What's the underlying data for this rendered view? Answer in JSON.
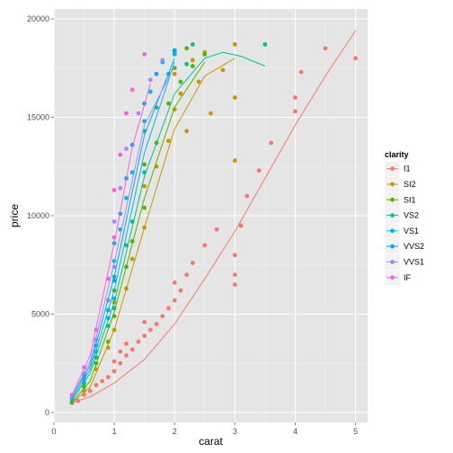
{
  "chart_data": {
    "type": "scatter",
    "xlabel": "carat",
    "ylabel": "price",
    "xlim": [
      0,
      5.2
    ],
    "ylim": [
      -500,
      20500
    ],
    "x_ticks": [
      0,
      1,
      2,
      3,
      4,
      5
    ],
    "y_ticks": [
      0,
      5000,
      10000,
      15000,
      20000
    ],
    "x_tick_labels": [
      "0",
      "1",
      "2",
      "3",
      "4",
      "5"
    ],
    "y_tick_labels": [
      "0",
      "5000",
      "10000",
      "15000",
      "20000"
    ],
    "grid": true,
    "legend": {
      "title": "clarity",
      "position": "right"
    },
    "series": [
      {
        "name": "I1",
        "color": "#F8766D",
        "points": [
          [
            0.4,
            600
          ],
          [
            0.5,
            900
          ],
          [
            0.6,
            1100
          ],
          [
            0.7,
            1400
          ],
          [
            0.8,
            1600
          ],
          [
            0.9,
            1800
          ],
          [
            1.0,
            2100
          ],
          [
            1.0,
            2600
          ],
          [
            1.1,
            2500
          ],
          [
            1.1,
            3100
          ],
          [
            1.2,
            2900
          ],
          [
            1.2,
            3500
          ],
          [
            1.3,
            3200
          ],
          [
            1.4,
            3600
          ],
          [
            1.5,
            3900
          ],
          [
            1.5,
            4600
          ],
          [
            1.6,
            4200
          ],
          [
            1.7,
            4500
          ],
          [
            1.8,
            4900
          ],
          [
            1.9,
            5300
          ],
          [
            2.0,
            5700
          ],
          [
            2.0,
            6600
          ],
          [
            2.1,
            6200
          ],
          [
            2.2,
            7000
          ],
          [
            2.3,
            7600
          ],
          [
            2.5,
            8500
          ],
          [
            2.7,
            9300
          ],
          [
            3.0,
            8000
          ],
          [
            3.0,
            7000
          ],
          [
            3.0,
            6500
          ],
          [
            3.1,
            9500
          ],
          [
            3.2,
            11000
          ],
          [
            3.4,
            12300
          ],
          [
            3.6,
            13700
          ],
          [
            4.0,
            15300
          ],
          [
            4.0,
            16000
          ],
          [
            4.1,
            17300
          ],
          [
            4.5,
            18500
          ],
          [
            5.0,
            18000
          ]
        ],
        "fit": [
          [
            0.3,
            500
          ],
          [
            0.6,
            800
          ],
          [
            1.0,
            1500
          ],
          [
            1.5,
            2700
          ],
          [
            2.0,
            4500
          ],
          [
            2.5,
            6800
          ],
          [
            3.0,
            9200
          ],
          [
            3.5,
            11900
          ],
          [
            4.0,
            14600
          ],
          [
            4.5,
            17100
          ],
          [
            5.0,
            19400
          ]
        ]
      },
      {
        "name": "SI2",
        "color": "#C49A00",
        "points": [
          [
            0.3,
            500
          ],
          [
            0.5,
            1100
          ],
          [
            0.7,
            2200
          ],
          [
            0.9,
            3300
          ],
          [
            1.0,
            4200
          ],
          [
            1.0,
            5600
          ],
          [
            1.2,
            6300
          ],
          [
            1.3,
            7800
          ],
          [
            1.5,
            9400
          ],
          [
            1.5,
            11500
          ],
          [
            1.7,
            12500
          ],
          [
            1.9,
            13800
          ],
          [
            2.0,
            15400
          ],
          [
            2.0,
            17200
          ],
          [
            2.1,
            16200
          ],
          [
            2.2,
            14300
          ],
          [
            2.3,
            17900
          ],
          [
            2.4,
            16800
          ],
          [
            2.5,
            18300
          ],
          [
            2.6,
            15200
          ],
          [
            2.8,
            17400
          ],
          [
            3.0,
            18700
          ],
          [
            3.0,
            12800
          ],
          [
            3.0,
            16000
          ]
        ],
        "fit": [
          [
            0.3,
            500
          ],
          [
            0.6,
            1300
          ],
          [
            1.0,
            4200
          ],
          [
            1.5,
            9400
          ],
          [
            2.0,
            14400
          ],
          [
            2.5,
            17100
          ],
          [
            3.0,
            18000
          ]
        ]
      },
      {
        "name": "SI1",
        "color": "#53B400",
        "points": [
          [
            0.3,
            500
          ],
          [
            0.5,
            1300
          ],
          [
            0.7,
            2500
          ],
          [
            0.9,
            3600
          ],
          [
            1.0,
            4900
          ],
          [
            1.0,
            6200
          ],
          [
            1.2,
            7400
          ],
          [
            1.3,
            8700
          ],
          [
            1.5,
            10400
          ],
          [
            1.5,
            12600
          ],
          [
            1.7,
            13700
          ],
          [
            1.9,
            15700
          ],
          [
            2.0,
            17500
          ],
          [
            2.1,
            16800
          ],
          [
            2.2,
            18500
          ],
          [
            2.3,
            17600
          ],
          [
            2.5,
            18200
          ]
        ],
        "fit": [
          [
            0.3,
            500
          ],
          [
            0.6,
            1600
          ],
          [
            1.0,
            5100
          ],
          [
            1.5,
            10900
          ],
          [
            2.0,
            15500
          ],
          [
            2.5,
            17800
          ]
        ]
      },
      {
        "name": "VS2",
        "color": "#00C094",
        "points": [
          [
            0.3,
            600
          ],
          [
            0.5,
            1500
          ],
          [
            0.7,
            2800
          ],
          [
            0.9,
            4400
          ],
          [
            1.0,
            5300
          ],
          [
            1.0,
            6900
          ],
          [
            1.2,
            8500
          ],
          [
            1.3,
            9700
          ],
          [
            1.5,
            12200
          ],
          [
            1.5,
            14300
          ],
          [
            1.7,
            15500
          ],
          [
            1.9,
            17200
          ],
          [
            2.0,
            18200
          ],
          [
            2.2,
            17700
          ],
          [
            2.3,
            18700
          ],
          [
            3.5,
            18700
          ]
        ],
        "fit": [
          [
            0.3,
            600
          ],
          [
            0.6,
            2000
          ],
          [
            1.0,
            5600
          ],
          [
            1.5,
            12000
          ],
          [
            2.0,
            16200
          ],
          [
            2.5,
            18000
          ],
          [
            2.8,
            18300
          ],
          [
            3.1,
            18100
          ],
          [
            3.5,
            17600
          ]
        ]
      },
      {
        "name": "VS1",
        "color": "#00B6EB",
        "points": [
          [
            0.3,
            700
          ],
          [
            0.5,
            1700
          ],
          [
            0.7,
            3100
          ],
          [
            0.9,
            4800
          ],
          [
            1.0,
            5800
          ],
          [
            1.0,
            7700
          ],
          [
            1.1,
            9300
          ],
          [
            1.2,
            10900
          ],
          [
            1.3,
            12200
          ],
          [
            1.5,
            14800
          ],
          [
            1.6,
            16300
          ],
          [
            1.8,
            17800
          ],
          [
            2.0,
            18300
          ]
        ],
        "fit": [
          [
            0.3,
            700
          ],
          [
            0.6,
            2200
          ],
          [
            1.0,
            6200
          ],
          [
            1.5,
            13200
          ],
          [
            2.0,
            17800
          ]
        ]
      },
      {
        "name": "VVS2",
        "color": "#06A4FF",
        "points": [
          [
            0.3,
            800
          ],
          [
            0.5,
            1900
          ],
          [
            0.7,
            3400
          ],
          [
            0.9,
            5200
          ],
          [
            1.0,
            6700
          ],
          [
            1.0,
            8600
          ],
          [
            1.1,
            10100
          ],
          [
            1.2,
            11900
          ],
          [
            1.3,
            13600
          ],
          [
            1.5,
            15700
          ],
          [
            1.7,
            17200
          ],
          [
            2.0,
            18400
          ]
        ],
        "fit": [
          [
            0.3,
            800
          ],
          [
            0.6,
            2400
          ],
          [
            1.0,
            6900
          ],
          [
            1.5,
            14100
          ],
          [
            2.0,
            18000
          ]
        ]
      },
      {
        "name": "VVS1",
        "color": "#A58AFF",
        "points": [
          [
            0.3,
            800
          ],
          [
            0.5,
            2000
          ],
          [
            0.7,
            3700
          ],
          [
            0.9,
            5700
          ],
          [
            1.0,
            7400
          ],
          [
            1.0,
            9700
          ],
          [
            1.1,
            11400
          ],
          [
            1.2,
            13400
          ],
          [
            1.4,
            15200
          ],
          [
            1.6,
            16900
          ],
          [
            1.8,
            17900
          ]
        ],
        "fit": [
          [
            0.3,
            800
          ],
          [
            0.6,
            2600
          ],
          [
            1.0,
            7600
          ],
          [
            1.5,
            14600
          ],
          [
            2.0,
            17600
          ]
        ]
      },
      {
        "name": "IF",
        "color": "#FB61D7",
        "points": [
          [
            0.3,
            900
          ],
          [
            0.5,
            2300
          ],
          [
            0.7,
            4200
          ],
          [
            0.9,
            6800
          ],
          [
            1.0,
            8900
          ],
          [
            1.0,
            11300
          ],
          [
            1.1,
            13100
          ],
          [
            1.2,
            15200
          ],
          [
            1.3,
            16400
          ],
          [
            1.5,
            18200
          ]
        ],
        "fit": [
          [
            0.3,
            900
          ],
          [
            0.6,
            2900
          ],
          [
            1.0,
            8600
          ],
          [
            1.3,
            13500
          ],
          [
            1.6,
            16700
          ]
        ]
      }
    ]
  }
}
